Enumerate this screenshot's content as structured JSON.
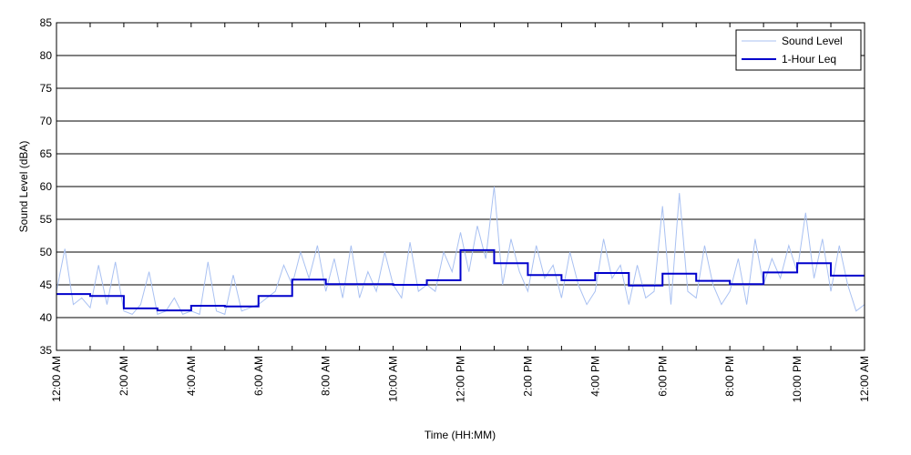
{
  "chart_data": {
    "type": "line",
    "xlabel": "Time (HH:MM)",
    "ylabel": "Sound Level (dBA)",
    "xlim": [
      0,
      24
    ],
    "ylim": [
      35,
      85
    ],
    "xticks": [
      {
        "value": 0,
        "label": "12:00 AM"
      },
      {
        "value": 2,
        "label": "2:00 AM"
      },
      {
        "value": 4,
        "label": "4:00 AM"
      },
      {
        "value": 6,
        "label": "6:00 AM"
      },
      {
        "value": 8,
        "label": "8:00 AM"
      },
      {
        "value": 10,
        "label": "10:00 AM"
      },
      {
        "value": 12,
        "label": "12:00 PM"
      },
      {
        "value": 14,
        "label": "2:00 PM"
      },
      {
        "value": 16,
        "label": "4:00 PM"
      },
      {
        "value": 18,
        "label": "6:00 PM"
      },
      {
        "value": 20,
        "label": "8:00 PM"
      },
      {
        "value": 22,
        "label": "10:00 PM"
      },
      {
        "value": 24,
        "label": "12:00 AM"
      }
    ],
    "xminorticks": [
      1,
      3,
      5,
      7,
      9,
      11,
      13,
      15,
      17,
      19,
      21,
      23
    ],
    "yticks": [
      35,
      40,
      45,
      50,
      55,
      60,
      65,
      70,
      75,
      80,
      85
    ],
    "grid": true,
    "legend": "upper right",
    "series": [
      {
        "name": "Sound Level",
        "color": "#a9c1f2",
        "step": false,
        "x": [
          0,
          0.25,
          0.5,
          0.75,
          1,
          1.25,
          1.5,
          1.75,
          2,
          2.25,
          2.5,
          2.75,
          3,
          3.25,
          3.5,
          3.75,
          4,
          4.25,
          4.5,
          4.75,
          5,
          5.25,
          5.5,
          5.75,
          6,
          6.25,
          6.5,
          6.75,
          7,
          7.25,
          7.5,
          7.75,
          8,
          8.25,
          8.5,
          8.75,
          9,
          9.25,
          9.5,
          9.75,
          10,
          10.25,
          10.5,
          10.75,
          11,
          11.25,
          11.5,
          11.75,
          12,
          12.25,
          12.5,
          12.75,
          13,
          13.25,
          13.5,
          13.75,
          14,
          14.25,
          14.5,
          14.75,
          15,
          15.25,
          15.5,
          15.75,
          16,
          16.25,
          16.5,
          16.75,
          17,
          17.25,
          17.5,
          17.75,
          18,
          18.25,
          18.5,
          18.75,
          19,
          19.25,
          19.5,
          19.75,
          20,
          20.25,
          20.5,
          20.75,
          21,
          21.25,
          21.5,
          21.75,
          22,
          22.25,
          22.5,
          22.75,
          23,
          23.25,
          23.5,
          23.75,
          24
        ],
        "values": [
          44,
          50.5,
          42,
          43,
          41.5,
          48,
          42,
          48.5,
          41,
          40.5,
          42,
          47,
          40.5,
          41,
          43,
          40.5,
          41,
          40.5,
          48.5,
          41,
          40.5,
          46.5,
          41,
          41.5,
          42,
          43,
          44,
          48,
          45,
          50,
          46,
          51,
          44,
          49,
          43,
          51,
          43,
          47,
          44,
          50,
          45,
          43,
          51.5,
          44,
          45,
          44,
          50,
          47,
          53,
          47,
          54,
          49,
          60,
          45,
          52,
          47,
          44,
          51,
          46,
          48,
          43,
          50,
          45,
          42,
          44,
          52,
          46,
          48,
          42,
          48,
          43,
          44,
          57,
          42,
          59,
          44,
          43,
          51,
          45,
          42,
          44,
          49,
          42,
          52,
          45,
          49,
          46,
          51,
          47,
          56,
          46,
          52,
          44,
          51,
          45,
          41,
          42
        ]
      },
      {
        "name": "1-Hour Leq",
        "color": "#0000cc",
        "step": true,
        "x": [
          0,
          1,
          2,
          3,
          4,
          5,
          6,
          7,
          8,
          9,
          10,
          11,
          12,
          13,
          14,
          15,
          16,
          17,
          18,
          19,
          20,
          21,
          22,
          23
        ],
        "values": [
          43.6,
          43.3,
          41.4,
          41.1,
          41.8,
          41.7,
          43.3,
          45.8,
          45.1,
          45.1,
          45.0,
          45.7,
          50.3,
          48.3,
          46.5,
          45.7,
          46.8,
          44.9,
          46.7,
          45.6,
          45.1,
          46.9,
          48.3,
          46.4
        ]
      }
    ]
  }
}
